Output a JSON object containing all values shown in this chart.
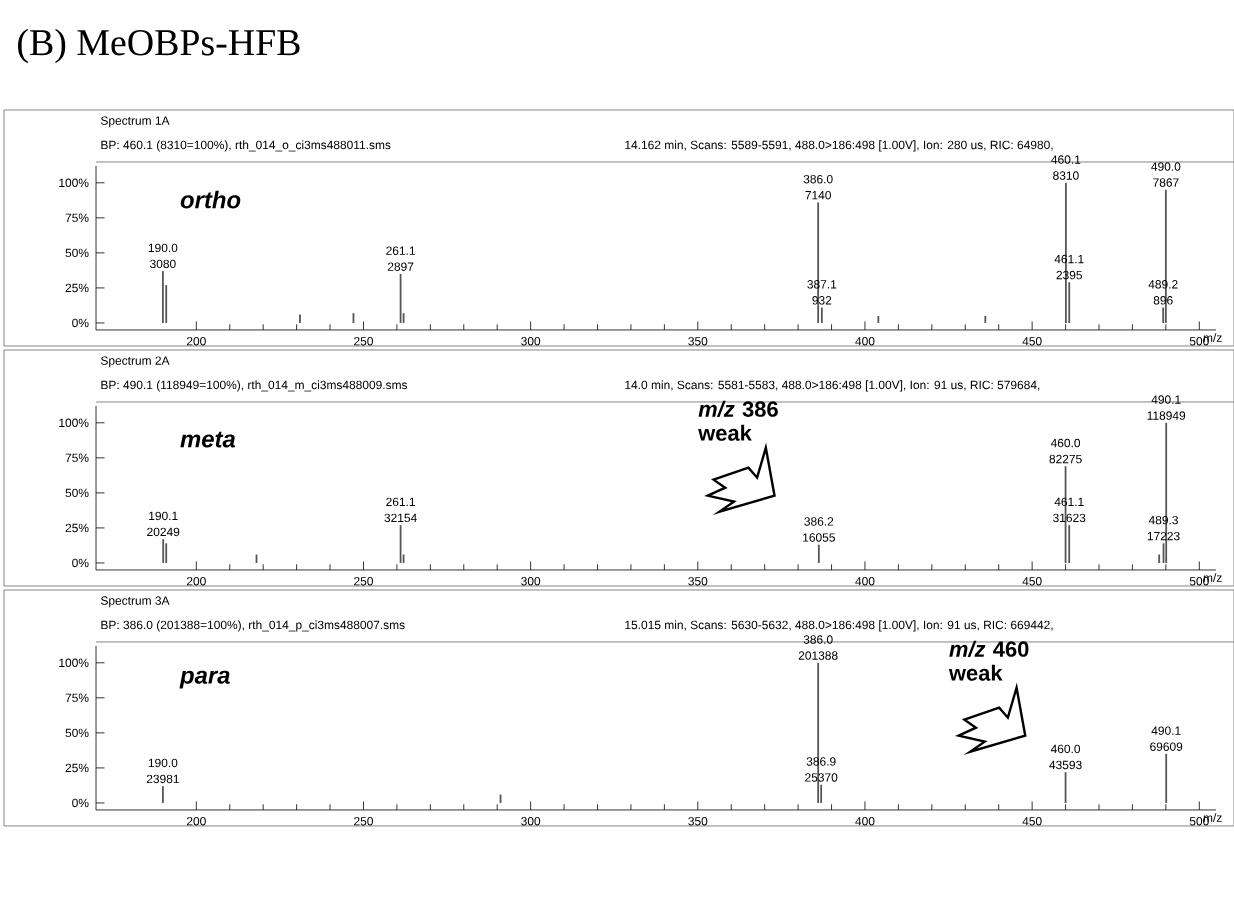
{
  "chart_data": [
    {
      "type": "bar",
      "title": "Spectrum 1A",
      "subtitle": "BP: 460.1 (8310=100%), rth_014_o_ci3ms488011.sms",
      "annotations": [
        "14.162 min, Scans: 5589-5591, 488.0>186:498 [1.00V], Ion: 280 us, RIC: 64980,",
        "ortho",
        "(B)  MeOBPs-HFB",
        {
          "text": "190.0",
          "x": 190.0,
          "y": 37
        },
        {
          "text": "261.1",
          "x": 261.1,
          "y": 35
        },
        {
          "text": "386.0",
          "x": 386.0,
          "y": 86
        },
        {
          "text": "387.1",
          "x": 387.1,
          "y": 11
        },
        {
          "text": "460.1",
          "x": 460.1,
          "y": 100
        },
        {
          "text": "461.1",
          "x": 461.1,
          "y": 29
        },
        {
          "text": "489.2",
          "x": 489.2,
          "y": 11
        },
        {
          "text": "490.0",
          "x": 490.0,
          "y": 95
        },
        {
          "text": "3080",
          "x": 190.0,
          "y": 37
        },
        {
          "text": "2897",
          "x": 261.1,
          "y": 35
        },
        {
          "text": "7140",
          "x": 386.0,
          "y": 86
        },
        {
          "text": "932",
          "x": 387.1,
          "y": 11
        },
        {
          "text": "8310",
          "x": 460.1,
          "y": 100
        },
        {
          "text": "2395",
          "x": 461.1,
          "y": 29
        },
        {
          "text": "896",
          "x": 489.2,
          "y": 11
        },
        {
          "text": "7867",
          "x": 490.0,
          "y": 95
        }
      ],
      "xlabel": "m/z",
      "x": [
        190.0,
        191.0,
        231.0,
        247.0,
        261.1,
        262.0,
        386.0,
        387.1,
        404.0,
        436.0,
        460.1,
        461.1,
        489.2,
        490.0
      ],
      "values": [
        37,
        27,
        6,
        7,
        35,
        7,
        86,
        11,
        5,
        5,
        100,
        29,
        11,
        95
      ],
      "color": "#555555",
      "xlim": [
        170,
        505
      ],
      "ylim": [
        -5,
        112
      ],
      "xticks": [
        200,
        250,
        300,
        350,
        400,
        450,
        500
      ],
      "yticks": [
        {
          "value": 0,
          "label": "0%"
        },
        {
          "value": 25,
          "label": "25%"
        },
        {
          "value": 50,
          "label": "50%"
        },
        {
          "value": 75,
          "label": "75%"
        },
        {
          "value": 100,
          "label": "100%"
        }
      ]
    },
    {
      "type": "bar",
      "title": "Spectrum 2A",
      "subtitle": "BP: 490.1 (118949=100%), rth_014_m_ci3ms488009.sms",
      "annotations": [
        "14.0 min, Scans: 5581-5583, 488.0>186:498 [1.00V], Ion: 91 us, RIC: 579684,",
        "meta",
        "*m/z* 386 weak",
        {
          "text": "190.1",
          "x": 190.1,
          "y": 17
        },
        {
          "text": "261.1",
          "x": 261.1,
          "y": 27
        },
        {
          "text": "386.2",
          "x": 386.2,
          "y": 13
        },
        {
          "text": "460.0",
          "x": 460.0,
          "y": 69
        },
        {
          "text": "461.1",
          "x": 461.1,
          "y": 27
        },
        {
          "text": "489.3",
          "x": 489.3,
          "y": 14
        },
        {
          "text": "490.1",
          "x": 490.1,
          "y": 100
        },
        {
          "text": "20249",
          "x": 190.1,
          "y": 17
        },
        {
          "text": "32154",
          "x": 261.1,
          "y": 27
        },
        {
          "text": "16055",
          "x": 386.2,
          "y": 13
        },
        {
          "text": "82275",
          "x": 460.0,
          "y": 69
        },
        {
          "text": "31623",
          "x": 461.1,
          "y": 27
        },
        {
          "text": "17223",
          "x": 489.3,
          "y": 14
        },
        {
          "text": "118949",
          "x": 490.1,
          "y": 100
        }
      ],
      "xlabel": "m/z",
      "x": [
        190.1,
        191.0,
        218.0,
        261.1,
        262.0,
        386.2,
        460.0,
        461.1,
        488.0,
        489.3,
        490.1
      ],
      "values": [
        17,
        14,
        6,
        27,
        6,
        13,
        69,
        27,
        6,
        14,
        100
      ],
      "color": "#555555",
      "xlim": [
        170,
        505
      ],
      "ylim": [
        -5,
        112
      ],
      "xticks": [
        200,
        250,
        300,
        350,
        400,
        450,
        500
      ],
      "yticks": [
        {
          "value": 0,
          "label": "0%"
        },
        {
          "value": 25,
          "label": "25%"
        },
        {
          "value": 50,
          "label": "50%"
        },
        {
          "value": 75,
          "label": "75%"
        },
        {
          "value": 100,
          "label": "100%"
        }
      ]
    },
    {
      "type": "bar",
      "title": "Spectrum 3A",
      "subtitle": "BP: 386.0 (201388=100%), rth_014_p_ci3ms488007.sms",
      "annotations": [
        "15.015 min, Scans: 5630-5632, 488.0>186:498 [1.00V], Ion: 91 us, RIC: 669442,",
        "para",
        "*m/z* 460 weak",
        {
          "text": "190.0",
          "x": 190.0,
          "y": 12
        },
        {
          "text": "386.0",
          "x": 386.0,
          "y": 100
        },
        {
          "text": "386.9",
          "x": 386.9,
          "y": 13
        },
        {
          "text": "460.0",
          "x": 460.0,
          "y": 22
        },
        {
          "text": "490.1",
          "x": 490.1,
          "y": 35
        },
        {
          "text": "23981",
          "x": 190.0,
          "y": 12
        },
        {
          "text": "201388",
          "x": 386.0,
          "y": 100
        },
        {
          "text": "25370",
          "x": 386.9,
          "y": 13
        },
        {
          "text": "43593",
          "x": 460.0,
          "y": 22
        },
        {
          "text": "69609",
          "x": 490.1,
          "y": 35
        }
      ],
      "xlabel": "m/z",
      "x": [
        190.0,
        291.0,
        386.0,
        386.9,
        460.0,
        490.1
      ],
      "values": [
        12,
        6,
        100,
        13,
        22,
        35
      ],
      "color": "#555555",
      "xlim": [
        170,
        505
      ],
      "ylim": [
        -5,
        112
      ],
      "xticks": [
        200,
        250,
        300,
        350,
        400,
        450,
        500
      ],
      "yticks": [
        {
          "value": 0,
          "label": "0%"
        },
        {
          "value": 25,
          "label": "25%"
        },
        {
          "value": 50,
          "label": "50%"
        },
        {
          "value": 75,
          "label": "75%"
        },
        {
          "value": 100,
          "label": "100%"
        }
      ]
    }
  ]
}
